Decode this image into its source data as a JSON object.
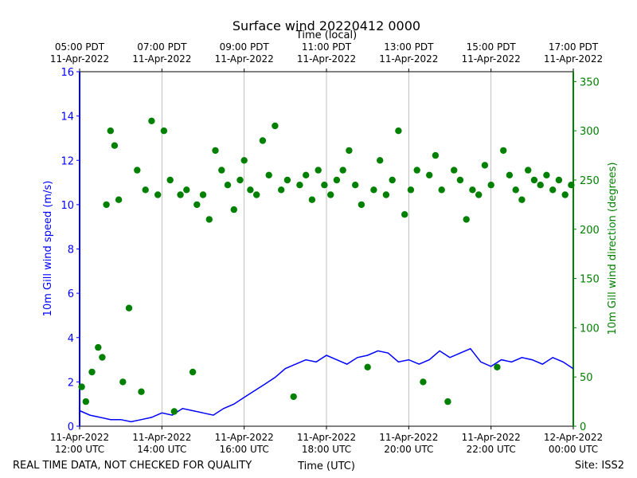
{
  "chart_data": {
    "type": "line",
    "title": "Surface wind 20220412 0000",
    "top_axis_label": "Time (local)",
    "xlabel": "Time (UTC)",
    "ylabel_left": "10m Gill wind speed (m/s)",
    "ylabel_right": "10m Gill wind direction (degrees)",
    "footer_left": "REAL TIME DATA, NOT CHECKED FOR QUALITY",
    "footer_right": "Site: ISS2",
    "x_range_hours": [
      0,
      12
    ],
    "ylim_left": [
      0,
      16
    ],
    "ylim_right": [
      0,
      360
    ],
    "left_ticks": [
      "0",
      "2",
      "4",
      "6",
      "8",
      "10",
      "12",
      "14",
      "16"
    ],
    "right_ticks": [
      "0",
      "50",
      "100",
      "150",
      "200",
      "250",
      "300",
      "350"
    ],
    "bottom_ticks": [
      {
        "hour": 0,
        "line1": "11-Apr-2022",
        "line2": "12:00 UTC"
      },
      {
        "hour": 2,
        "line1": "11-Apr-2022",
        "line2": "14:00 UTC"
      },
      {
        "hour": 4,
        "line1": "11-Apr-2022",
        "line2": "16:00 UTC"
      },
      {
        "hour": 6,
        "line1": "11-Apr-2022",
        "line2": "18:00 UTC"
      },
      {
        "hour": 8,
        "line1": "11-Apr-2022",
        "line2": "20:00 UTC"
      },
      {
        "hour": 10,
        "line1": "11-Apr-2022",
        "line2": "22:00 UTC"
      },
      {
        "hour": 12,
        "line1": "12-Apr-2022",
        "line2": "00:00 UTC"
      }
    ],
    "top_ticks": [
      {
        "hour": 0,
        "line1": "05:00 PDT",
        "line2": "11-Apr-2022"
      },
      {
        "hour": 2,
        "line1": "07:00 PDT",
        "line2": "11-Apr-2022"
      },
      {
        "hour": 4,
        "line1": "09:00 PDT",
        "line2": "11-Apr-2022"
      },
      {
        "hour": 6,
        "line1": "11:00 PDT",
        "line2": "11-Apr-2022"
      },
      {
        "hour": 8,
        "line1": "13:00 PDT",
        "line2": "11-Apr-2022"
      },
      {
        "hour": 10,
        "line1": "15:00 PDT",
        "line2": "11-Apr-2022"
      },
      {
        "hour": 12,
        "line1": "17:00 PDT",
        "line2": "11-Apr-2022"
      }
    ],
    "series": [
      {
        "name": "wind speed",
        "axis": "left",
        "style": "line",
        "color": "#0000ff",
        "x": [
          0.0,
          0.25,
          0.5,
          0.75,
          1.0,
          1.25,
          1.5,
          1.75,
          2.0,
          2.25,
          2.5,
          2.75,
          3.0,
          3.25,
          3.5,
          3.75,
          4.0,
          4.25,
          4.5,
          4.75,
          5.0,
          5.25,
          5.5,
          5.75,
          6.0,
          6.25,
          6.5,
          6.75,
          7.0,
          7.25,
          7.5,
          7.75,
          8.0,
          8.25,
          8.5,
          8.75,
          9.0,
          9.25,
          9.5,
          9.75,
          10.0,
          10.25,
          10.5,
          10.75,
          11.0,
          11.25,
          11.5,
          11.75,
          12.0
        ],
        "y": [
          0.7,
          0.5,
          0.4,
          0.3,
          0.3,
          0.2,
          0.3,
          0.4,
          0.6,
          0.5,
          0.8,
          0.7,
          0.6,
          0.5,
          0.8,
          1.0,
          1.3,
          1.6,
          1.9,
          2.2,
          2.6,
          2.8,
          3.0,
          2.9,
          3.2,
          3.0,
          2.8,
          3.1,
          3.2,
          3.4,
          3.3,
          2.9,
          3.0,
          2.8,
          3.0,
          3.4,
          3.1,
          3.3,
          3.5,
          2.9,
          2.7,
          3.0,
          2.9,
          3.1,
          3.0,
          2.8,
          3.1,
          2.9,
          2.6
        ]
      },
      {
        "name": "wind direction",
        "axis": "right",
        "style": "dots",
        "color": "#008000",
        "x": [
          0.05,
          0.15,
          0.3,
          0.45,
          0.55,
          0.65,
          0.75,
          0.85,
          0.95,
          1.05,
          1.2,
          1.4,
          1.5,
          1.6,
          1.75,
          1.9,
          2.05,
          2.2,
          2.3,
          2.45,
          2.6,
          2.75,
          2.85,
          3.0,
          3.15,
          3.3,
          3.45,
          3.6,
          3.75,
          3.9,
          4.0,
          4.15,
          4.3,
          4.45,
          4.6,
          4.75,
          4.9,
          5.05,
          5.2,
          5.35,
          5.5,
          5.65,
          5.8,
          5.95,
          6.1,
          6.25,
          6.4,
          6.55,
          6.7,
          6.85,
          7.0,
          7.15,
          7.3,
          7.45,
          7.6,
          7.75,
          7.9,
          8.05,
          8.2,
          8.35,
          8.5,
          8.65,
          8.8,
          8.95,
          9.1,
          9.25,
          9.4,
          9.55,
          9.7,
          9.85,
          10.0,
          10.15,
          10.3,
          10.45,
          10.6,
          10.75,
          10.9,
          11.05,
          11.2,
          11.35,
          11.5,
          11.65,
          11.8,
          11.95
        ],
        "y": [
          40,
          25,
          55,
          80,
          70,
          225,
          300,
          285,
          230,
          45,
          120,
          260,
          35,
          240,
          310,
          235,
          300,
          250,
          15,
          235,
          240,
          55,
          225,
          235,
          210,
          280,
          260,
          245,
          220,
          250,
          270,
          240,
          235,
          290,
          255,
          305,
          240,
          250,
          30,
          245,
          255,
          230,
          260,
          245,
          235,
          250,
          260,
          280,
          245,
          225,
          60,
          240,
          270,
          235,
          250,
          300,
          215,
          240,
          260,
          45,
          255,
          275,
          240,
          25,
          260,
          250,
          210,
          240,
          235,
          265,
          245,
          60,
          280,
          255,
          240,
          230,
          260,
          250,
          245,
          255,
          240,
          250,
          235,
          245
        ]
      }
    ]
  }
}
